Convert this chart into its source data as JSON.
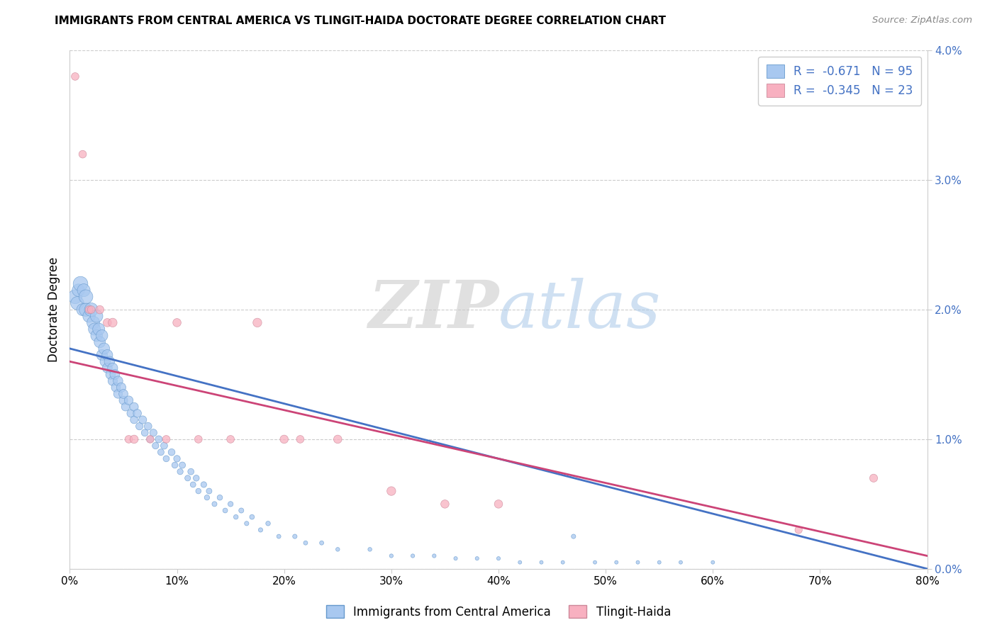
{
  "title": "IMMIGRANTS FROM CENTRAL AMERICA VS TLINGIT-HAIDA DOCTORATE DEGREE CORRELATION CHART",
  "source": "Source: ZipAtlas.com",
  "ylabel": "Doctorate Degree",
  "legend_labels": [
    "Immigrants from Central America",
    "Tlingit-Haida"
  ],
  "blue_r": "-0.671",
  "blue_n": "95",
  "pink_r": "-0.345",
  "pink_n": "23",
  "blue_color": "#a8c8f0",
  "blue_edge_color": "#6699cc",
  "blue_line_color": "#4472c4",
  "pink_color": "#f8b0c0",
  "pink_edge_color": "#cc8899",
  "pink_line_color": "#cc4477",
  "watermark_zip": "ZIP",
  "watermark_atlas": "atlas",
  "xlim": [
    0.0,
    0.8
  ],
  "ylim": [
    0.0,
    0.04
  ],
  "xticks": [
    0.0,
    0.1,
    0.2,
    0.3,
    0.4,
    0.5,
    0.6,
    0.7,
    0.8
  ],
  "yticks": [
    0.0,
    0.01,
    0.02,
    0.03,
    0.04
  ],
  "blue_x": [
    0.005,
    0.007,
    0.008,
    0.01,
    0.012,
    0.013,
    0.015,
    0.015,
    0.018,
    0.02,
    0.022,
    0.023,
    0.025,
    0.025,
    0.027,
    0.028,
    0.03,
    0.03,
    0.032,
    0.033,
    0.035,
    0.035,
    0.037,
    0.038,
    0.04,
    0.04,
    0.042,
    0.043,
    0.045,
    0.045,
    0.048,
    0.05,
    0.05,
    0.052,
    0.055,
    0.057,
    0.06,
    0.06,
    0.063,
    0.065,
    0.068,
    0.07,
    0.073,
    0.075,
    0.078,
    0.08,
    0.083,
    0.085,
    0.088,
    0.09,
    0.095,
    0.098,
    0.1,
    0.103,
    0.105,
    0.11,
    0.113,
    0.115,
    0.118,
    0.12,
    0.125,
    0.128,
    0.13,
    0.135,
    0.14,
    0.145,
    0.15,
    0.155,
    0.16,
    0.165,
    0.17,
    0.178,
    0.185,
    0.195,
    0.21,
    0.22,
    0.235,
    0.25,
    0.28,
    0.3,
    0.32,
    0.34,
    0.36,
    0.38,
    0.4,
    0.42,
    0.44,
    0.46,
    0.49,
    0.51,
    0.53,
    0.55,
    0.57,
    0.6,
    0.47
  ],
  "blue_y": [
    0.021,
    0.0205,
    0.0215,
    0.022,
    0.02,
    0.0215,
    0.02,
    0.021,
    0.0195,
    0.02,
    0.019,
    0.0185,
    0.0195,
    0.018,
    0.0185,
    0.0175,
    0.018,
    0.0165,
    0.017,
    0.016,
    0.0165,
    0.0155,
    0.016,
    0.015,
    0.0155,
    0.0145,
    0.015,
    0.014,
    0.0145,
    0.0135,
    0.014,
    0.013,
    0.0135,
    0.0125,
    0.013,
    0.012,
    0.0125,
    0.0115,
    0.012,
    0.011,
    0.0115,
    0.0105,
    0.011,
    0.01,
    0.0105,
    0.0095,
    0.01,
    0.009,
    0.0095,
    0.0085,
    0.009,
    0.008,
    0.0085,
    0.0075,
    0.008,
    0.007,
    0.0075,
    0.0065,
    0.007,
    0.006,
    0.0065,
    0.0055,
    0.006,
    0.005,
    0.0055,
    0.0045,
    0.005,
    0.004,
    0.0045,
    0.0035,
    0.004,
    0.003,
    0.0035,
    0.0025,
    0.0025,
    0.002,
    0.002,
    0.0015,
    0.0015,
    0.001,
    0.001,
    0.001,
    0.0008,
    0.0008,
    0.0008,
    0.0005,
    0.0005,
    0.0005,
    0.0005,
    0.0005,
    0.0005,
    0.0005,
    0.0005,
    0.0005,
    0.0025
  ],
  "blue_size": [
    200,
    180,
    160,
    220,
    150,
    170,
    180,
    200,
    160,
    190,
    170,
    150,
    160,
    140,
    150,
    130,
    140,
    120,
    130,
    110,
    120,
    100,
    110,
    95,
    105,
    90,
    100,
    85,
    95,
    80,
    90,
    75,
    85,
    70,
    80,
    65,
    75,
    60,
    70,
    55,
    65,
    50,
    60,
    48,
    55,
    45,
    52,
    42,
    50,
    40,
    48,
    38,
    45,
    36,
    42,
    34,
    40,
    32,
    38,
    30,
    35,
    28,
    33,
    26,
    30,
    24,
    28,
    22,
    26,
    20,
    24,
    20,
    22,
    18,
    20,
    18,
    18,
    16,
    16,
    15,
    15,
    15,
    14,
    14,
    14,
    13,
    13,
    13,
    13,
    13,
    13,
    13,
    13,
    13,
    20
  ],
  "pink_x": [
    0.005,
    0.012,
    0.018,
    0.02,
    0.028,
    0.035,
    0.04,
    0.055,
    0.06,
    0.075,
    0.09,
    0.1,
    0.12,
    0.15,
    0.175,
    0.2,
    0.215,
    0.25,
    0.3,
    0.35,
    0.4,
    0.68,
    0.75
  ],
  "pink_y": [
    0.038,
    0.032,
    0.02,
    0.02,
    0.02,
    0.019,
    0.019,
    0.01,
    0.01,
    0.01,
    0.01,
    0.019,
    0.01,
    0.01,
    0.019,
    0.01,
    0.01,
    0.01,
    0.006,
    0.005,
    0.005,
    0.003,
    0.007
  ],
  "pink_size": [
    60,
    60,
    60,
    60,
    70,
    70,
    80,
    60,
    70,
    60,
    60,
    70,
    60,
    60,
    80,
    70,
    60,
    70,
    80,
    70,
    70,
    55,
    65
  ],
  "blue_trendline": [
    0.0,
    0.8
  ],
  "blue_trend_y": [
    0.017,
    0.0
  ],
  "pink_trendline": [
    0.0,
    0.8
  ],
  "pink_trend_y": [
    0.016,
    0.001
  ]
}
